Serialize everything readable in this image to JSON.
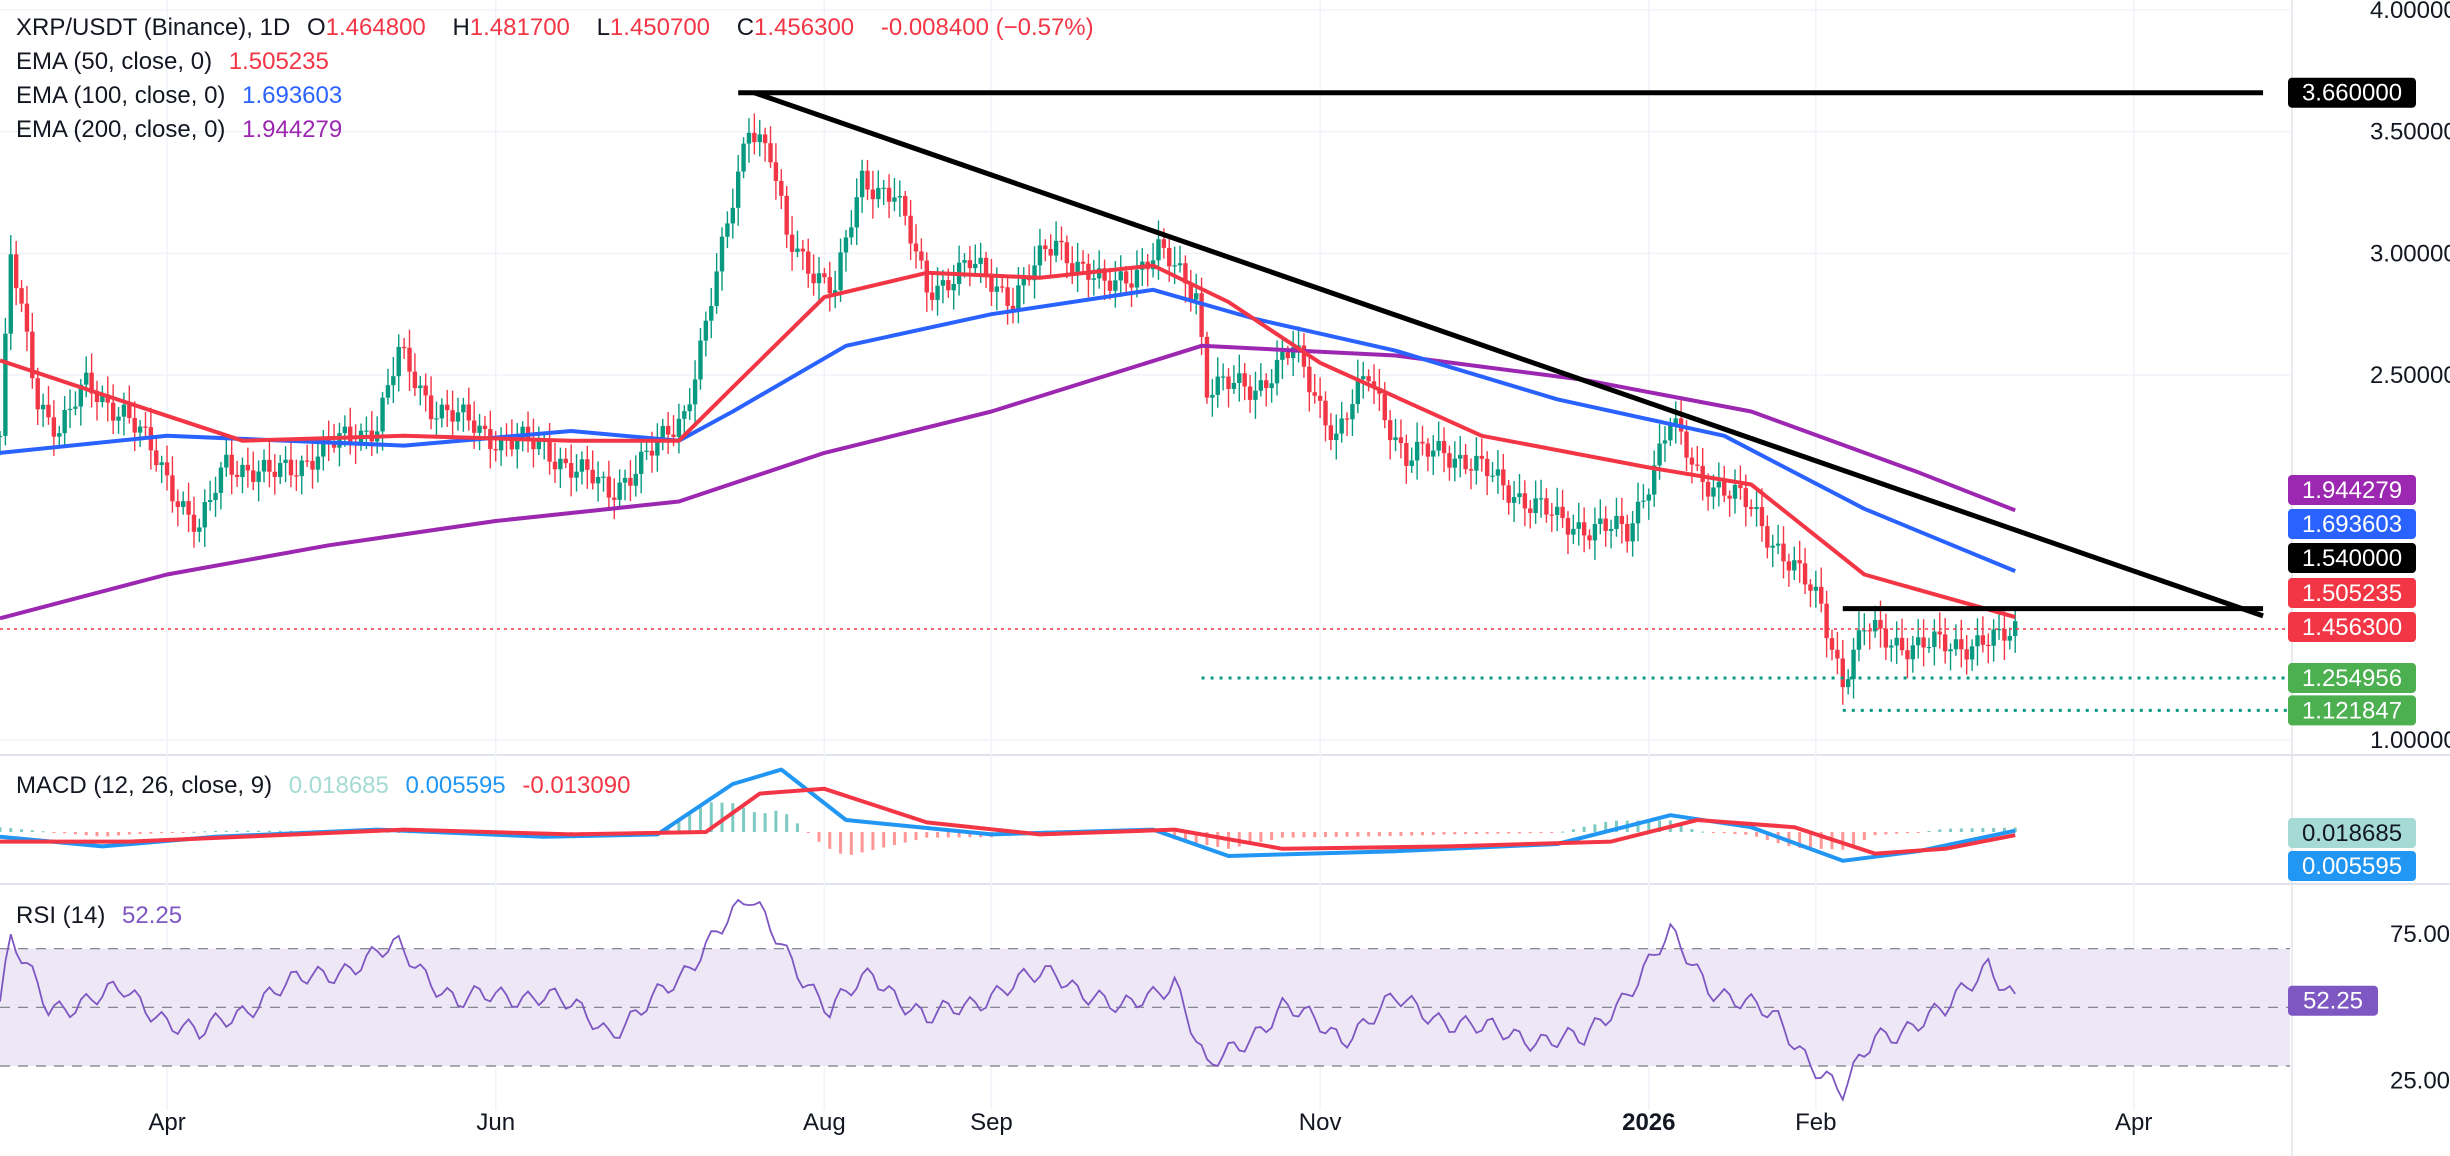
{
  "header": {
    "symbol": "XRP/USDT (Binance), 1D",
    "o_label": "O",
    "o": "1.464800",
    "h_label": "H",
    "h": "1.481700",
    "l_label": "L",
    "l": "1.450700",
    "c_label": "C",
    "c": "1.456300",
    "change": "-0.008400 (−0.57%)"
  },
  "legend": [
    {
      "label": "EMA (50, close, 0)",
      "value": "1.505235",
      "color": "#f23645"
    },
    {
      "label": "EMA (100, close, 0)",
      "value": "1.693603",
      "color": "#2962ff"
    },
    {
      "label": "EMA (200, close, 0)",
      "value": "1.944279",
      "color": "#9c27b0"
    }
  ],
  "macd_legend": {
    "label": "MACD (12, 26, close, 9)",
    "hist": "0.018685",
    "macd": "0.005595",
    "signal": "-0.013090",
    "hist_color": "#a5dbd4",
    "macd_color": "#2196f3",
    "signal_color": "#f23645"
  },
  "rsi_legend": {
    "label": "RSI (14)",
    "value": "52.25",
    "color": "#7e57c2"
  },
  "colors": {
    "up": "#089981",
    "down": "#f23645",
    "ema50": "#f23645",
    "ema100": "#2962ff",
    "ema200": "#9c27b0",
    "rsi": "#7e57c2",
    "rsi_band": "#ede7f6"
  },
  "chart_data": [
    {
      "type": "candlestick",
      "title": "XRP/USDT (Binance), 1D",
      "x_range": [
        "2025-03-01",
        "2026-04-30"
      ],
      "ylim": [
        1.0,
        4.0
      ],
      "y_ticks": [
        "1.000000",
        "2.500000",
        "3.000000",
        "3.500000",
        "4.000000"
      ],
      "x_ticks": [
        {
          "date": "2025-04-01",
          "label": "Apr"
        },
        {
          "date": "2025-06-01",
          "label": "Jun"
        },
        {
          "date": "2025-08-01",
          "label": "Aug"
        },
        {
          "date": "2025-09-01",
          "label": "Sep"
        },
        {
          "date": "2025-11-01",
          "label": "Nov"
        },
        {
          "date": "2026-01-01",
          "label": "2026",
          "bold": true
        },
        {
          "date": "2026-02-01",
          "label": "Feb"
        },
        {
          "date": "2026-04-01",
          "label": "Apr"
        }
      ],
      "price_path": [
        [
          "2025-03-01",
          2.25
        ],
        [
          "2025-03-03",
          2.98
        ],
        [
          "2025-03-08",
          2.4
        ],
        [
          "2025-03-12",
          2.28
        ],
        [
          "2025-03-17",
          2.45
        ],
        [
          "2025-03-24",
          2.35
        ],
        [
          "2025-03-31",
          2.12
        ],
        [
          "2025-04-07",
          1.85
        ],
        [
          "2025-04-12",
          2.15
        ],
        [
          "2025-04-20",
          2.08
        ],
        [
          "2025-05-01",
          2.2
        ],
        [
          "2025-05-10",
          2.3
        ],
        [
          "2025-05-14",
          2.58
        ],
        [
          "2025-05-20",
          2.38
        ],
        [
          "2025-05-31",
          2.25
        ],
        [
          "2025-06-10",
          2.2
        ],
        [
          "2025-06-22",
          2.02
        ],
        [
          "2025-07-01",
          2.2
        ],
        [
          "2025-07-06",
          2.35
        ],
        [
          "2025-07-10",
          2.7
        ],
        [
          "2025-07-13",
          3.0
        ],
        [
          "2025-07-18",
          3.55
        ],
        [
          "2025-07-22",
          3.4
        ],
        [
          "2025-07-25",
          3.05
        ],
        [
          "2025-08-03",
          2.85
        ],
        [
          "2025-08-08",
          3.3
        ],
        [
          "2025-08-14",
          3.25
        ],
        [
          "2025-08-20",
          2.85
        ],
        [
          "2025-08-28",
          2.95
        ],
        [
          "2025-09-05",
          2.82
        ],
        [
          "2025-09-13",
          3.05
        ],
        [
          "2025-09-22",
          2.85
        ],
        [
          "2025-10-02",
          3.0
        ],
        [
          "2025-10-09",
          2.85
        ],
        [
          "2025-10-11",
          2.45
        ],
        [
          "2025-10-20",
          2.45
        ],
        [
          "2025-10-27",
          2.6
        ],
        [
          "2025-11-04",
          2.25
        ],
        [
          "2025-11-10",
          2.5
        ],
        [
          "2025-11-17",
          2.15
        ],
        [
          "2025-11-24",
          2.2
        ],
        [
          "2025-12-05",
          2.05
        ],
        [
          "2025-12-15",
          1.9
        ],
        [
          "2025-12-28",
          1.85
        ],
        [
          "2026-01-05",
          2.3
        ],
        [
          "2026-01-10",
          2.1
        ],
        [
          "2026-01-20",
          1.95
        ],
        [
          "2026-01-28",
          1.7
        ],
        [
          "2026-02-02",
          1.55
        ],
        [
          "2026-02-06",
          1.25
        ],
        [
          "2026-02-10",
          1.45
        ],
        [
          "2026-02-20",
          1.38
        ],
        [
          "2026-03-01",
          1.4
        ],
        [
          "2026-03-07",
          1.4
        ],
        [
          "2026-03-10",
          1.46
        ]
      ],
      "ema50": [
        [
          "2025-03-01",
          2.56
        ],
        [
          "2025-03-20",
          2.42
        ],
        [
          "2025-04-15",
          2.23
        ],
        [
          "2025-05-15",
          2.25
        ],
        [
          "2025-06-15",
          2.23
        ],
        [
          "2025-07-05",
          2.23
        ],
        [
          "2025-07-15",
          2.45
        ],
        [
          "2025-08-01",
          2.82
        ],
        [
          "2025-08-20",
          2.92
        ],
        [
          "2025-09-10",
          2.9
        ],
        [
          "2025-10-01",
          2.95
        ],
        [
          "2025-10-15",
          2.8
        ],
        [
          "2025-11-01",
          2.55
        ],
        [
          "2025-12-01",
          2.25
        ],
        [
          "2026-01-01",
          2.12
        ],
        [
          "2026-01-20",
          2.05
        ],
        [
          "2026-02-10",
          1.68
        ],
        [
          "2026-03-10",
          1.505
        ]
      ],
      "ema100": [
        [
          "2025-03-01",
          2.18
        ],
        [
          "2025-04-01",
          2.25
        ],
        [
          "2025-05-15",
          2.21
        ],
        [
          "2025-06-15",
          2.27
        ],
        [
          "2025-07-05",
          2.23
        ],
        [
          "2025-07-15",
          2.35
        ],
        [
          "2025-08-05",
          2.62
        ],
        [
          "2025-09-01",
          2.75
        ],
        [
          "2025-10-01",
          2.85
        ],
        [
          "2025-10-20",
          2.73
        ],
        [
          "2025-11-15",
          2.6
        ],
        [
          "2025-12-15",
          2.4
        ],
        [
          "2026-01-15",
          2.25
        ],
        [
          "2026-02-10",
          1.95
        ],
        [
          "2026-03-10",
          1.694
        ]
      ],
      "ema200": [
        [
          "2025-03-01",
          1.5
        ],
        [
          "2025-04-01",
          1.68
        ],
        [
          "2025-05-01",
          1.8
        ],
        [
          "2025-06-01",
          1.9
        ],
        [
          "2025-07-05",
          1.98
        ],
        [
          "2025-08-01",
          2.18
        ],
        [
          "2025-09-01",
          2.35
        ],
        [
          "2025-10-10",
          2.62
        ],
        [
          "2025-11-15",
          2.58
        ],
        [
          "2025-12-20",
          2.48
        ],
        [
          "2026-01-20",
          2.35
        ],
        [
          "2026-02-20",
          2.1
        ],
        [
          "2026-03-10",
          1.944
        ]
      ],
      "trendlines": [
        {
          "from": [
            "2025-07-16",
            3.66
          ],
          "to": [
            "2026-04-25",
            3.66
          ],
          "color": "#000000"
        },
        {
          "from": [
            "2025-07-19",
            3.66
          ],
          "to": [
            "2026-04-25",
            1.51
          ],
          "color": "#000000"
        },
        {
          "from": [
            "2026-02-06",
            1.54
          ],
          "to": [
            "2026-04-25",
            1.54
          ],
          "color": "#000000"
        }
      ],
      "dotted_levels": [
        {
          "from": "2025-10-10",
          "value": 1.254956,
          "color": "#089981"
        },
        {
          "from": "2026-02-06",
          "value": 1.121847,
          "color": "#089981"
        },
        {
          "from": "2025-03-01",
          "value": 1.4563,
          "color": "#f23645"
        }
      ],
      "price_tags": [
        {
          "value": 3.66,
          "label": "3.660000",
          "bg": "#000000",
          "fg": "#ffffff"
        },
        {
          "value": 1.944279,
          "label": "1.944279",
          "bg": "#9c27b0",
          "fg": "#ffffff"
        },
        {
          "value": 1.693603,
          "label": "1.693603",
          "bg": "#2962ff",
          "fg": "#ffffff"
        },
        {
          "value": 1.54,
          "label": "1.540000",
          "bg": "#000000",
          "fg": "#ffffff"
        },
        {
          "value": 1.505235,
          "label": "1.505235",
          "bg": "#f23645",
          "fg": "#ffffff"
        },
        {
          "value": 1.4563,
          "label": "1.456300",
          "bg": "#f23645",
          "fg": "#ffffff"
        },
        {
          "value": 1.254956,
          "label": "1.254956",
          "bg": "#4caf50",
          "fg": "#ffffff"
        },
        {
          "value": 1.121847,
          "label": "1.121847",
          "bg": "#4caf50",
          "fg": "#ffffff"
        }
      ]
    },
    {
      "type": "line",
      "title": "MACD (12, 26, close, 9)",
      "ylim": [
        -0.2,
        0.3
      ],
      "macd": [
        [
          "2025-03-01",
          -0.02
        ],
        [
          "2025-03-20",
          -0.06
        ],
        [
          "2025-04-10",
          -0.02
        ],
        [
          "2025-05-10",
          0.01
        ],
        [
          "2025-06-10",
          -0.02
        ],
        [
          "2025-07-01",
          -0.01
        ],
        [
          "2025-07-15",
          0.2
        ],
        [
          "2025-07-24",
          0.26
        ],
        [
          "2025-08-05",
          0.05
        ],
        [
          "2025-09-01",
          -0.01
        ],
        [
          "2025-10-01",
          0.01
        ],
        [
          "2025-10-15",
          -0.1
        ],
        [
          "2025-11-15",
          -0.08
        ],
        [
          "2025-12-15",
          -0.05
        ],
        [
          "2026-01-05",
          0.07
        ],
        [
          "2026-01-20",
          0.02
        ],
        [
          "2026-02-06",
          -0.12
        ],
        [
          "2026-02-20",
          -0.08
        ],
        [
          "2026-03-10",
          0.0056
        ]
      ],
      "signal": [
        [
          "2025-03-01",
          -0.04
        ],
        [
          "2025-03-25",
          -0.04
        ],
        [
          "2025-04-15",
          -0.02
        ],
        [
          "2025-05-15",
          0.01
        ],
        [
          "2025-06-15",
          -0.01
        ],
        [
          "2025-07-10",
          0.0
        ],
        [
          "2025-07-20",
          0.16
        ],
        [
          "2025-08-01",
          0.18
        ],
        [
          "2025-08-20",
          0.04
        ],
        [
          "2025-09-10",
          -0.01
        ],
        [
          "2025-10-05",
          0.01
        ],
        [
          "2025-10-25",
          -0.07
        ],
        [
          "2025-11-25",
          -0.06
        ],
        [
          "2025-12-25",
          -0.04
        ],
        [
          "2026-01-10",
          0.05
        ],
        [
          "2026-01-28",
          0.02
        ],
        [
          "2026-02-12",
          -0.09
        ],
        [
          "2026-02-25",
          -0.07
        ],
        [
          "2026-03-10",
          -0.013
        ]
      ],
      "y_tags": [
        {
          "label": "0.018685",
          "bg": "#a5dbd4",
          "fg": "#131722"
        },
        {
          "label": "0.005595",
          "bg": "#2196f3",
          "fg": "#ffffff"
        }
      ]
    },
    {
      "type": "line",
      "title": "RSI (14)",
      "ylim": [
        15,
        90
      ],
      "y_ticks": [
        "75.00",
        "25.00"
      ],
      "bands": [
        70,
        50,
        30
      ],
      "values": [
        [
          "2025-03-01",
          52
        ],
        [
          "2025-03-03",
          72
        ],
        [
          "2025-03-10",
          50
        ],
        [
          "2025-03-24",
          55
        ],
        [
          "2025-04-07",
          40
        ],
        [
          "2025-04-20",
          55
        ],
        [
          "2025-05-14",
          70
        ],
        [
          "2025-05-25",
          52
        ],
        [
          "2025-06-10",
          55
        ],
        [
          "2025-06-22",
          42
        ],
        [
          "2025-07-05",
          58
        ],
        [
          "2025-07-12",
          78
        ],
        [
          "2025-07-18",
          86
        ],
        [
          "2025-07-24",
          72
        ],
        [
          "2025-08-02",
          48
        ],
        [
          "2025-08-10",
          62
        ],
        [
          "2025-08-20",
          45
        ],
        [
          "2025-09-01",
          55
        ],
        [
          "2025-09-13",
          62
        ],
        [
          "2025-09-25",
          48
        ],
        [
          "2025-10-05",
          60
        ],
        [
          "2025-10-11",
          28
        ],
        [
          "2025-10-25",
          50
        ],
        [
          "2025-11-05",
          40
        ],
        [
          "2025-11-15",
          52
        ],
        [
          "2025-12-01",
          42
        ],
        [
          "2025-12-20",
          38
        ],
        [
          "2026-01-05",
          74
        ],
        [
          "2026-01-12",
          58
        ],
        [
          "2026-01-25",
          45
        ],
        [
          "2026-02-06",
          20
        ],
        [
          "2026-02-12",
          40
        ],
        [
          "2026-02-25",
          48
        ],
        [
          "2026-03-05",
          66
        ],
        [
          "2026-03-10",
          52.25
        ]
      ],
      "y_tag": {
        "label": "52.25",
        "bg": "#7e57c2",
        "fg": "#ffffff"
      }
    }
  ]
}
